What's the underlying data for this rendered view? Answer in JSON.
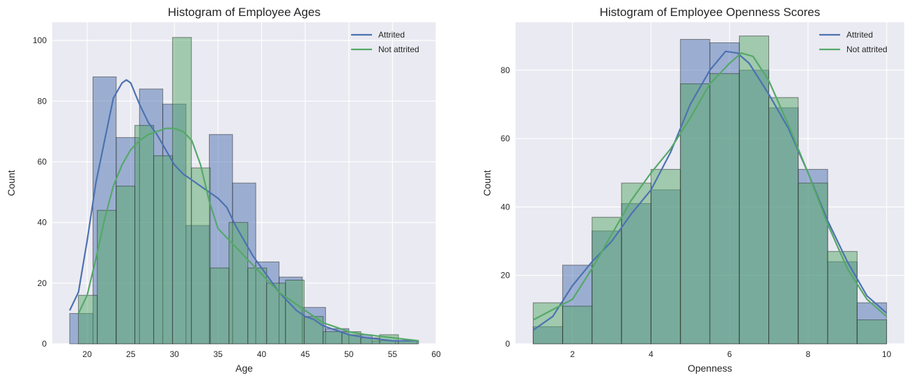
{
  "chart_data": [
    {
      "type": "histogram",
      "title": "Histogram of Employee Ages",
      "xlabel": "Age",
      "ylabel": "Count",
      "xlim": [
        16,
        60
      ],
      "ylim": [
        0,
        106
      ],
      "xticks": [
        20,
        25,
        30,
        35,
        40,
        45,
        50,
        55,
        60
      ],
      "yticks": [
        0,
        20,
        40,
        60,
        80,
        100
      ],
      "grid": true,
      "legend_position": "top-right",
      "legend": [
        "Attrited",
        "Not attrited"
      ],
      "series": [
        {
          "name": "Attrited",
          "color": "#4c72b0",
          "bin_edges": [
            18,
            20.67,
            23.33,
            26,
            28.67,
            31.33,
            34,
            36.67,
            39.33,
            42,
            44.67,
            47.33,
            50,
            52.67,
            55.33,
            58
          ],
          "counts": [
            10,
            88,
            68,
            84,
            79,
            39,
            69,
            53,
            27,
            22,
            12,
            5,
            3,
            1,
            1
          ],
          "kde": [
            [
              18,
              11
            ],
            [
              19,
              17
            ],
            [
              20,
              34
            ],
            [
              21,
              53
            ],
            [
              22,
              67
            ],
            [
              23,
              81
            ],
            [
              24,
              86
            ],
            [
              24.5,
              87
            ],
            [
              25,
              86
            ],
            [
              26,
              79
            ],
            [
              27,
              73
            ],
            [
              28,
              69
            ],
            [
              29,
              64
            ],
            [
              30,
              59
            ],
            [
              31,
              56
            ],
            [
              32,
              54
            ],
            [
              33,
              52
            ],
            [
              34,
              50
            ],
            [
              35,
              48
            ],
            [
              36,
              45
            ],
            [
              37,
              39
            ],
            [
              38,
              34
            ],
            [
              39,
              29
            ],
            [
              40,
              25
            ],
            [
              41,
              21
            ],
            [
              42,
              17
            ],
            [
              43,
              14
            ],
            [
              44,
              11
            ],
            [
              45,
              9
            ],
            [
              46,
              8
            ],
            [
              47,
              6
            ],
            [
              48,
              5
            ],
            [
              50,
              3
            ],
            [
              52,
              2
            ],
            [
              55,
              1
            ],
            [
              58,
              1
            ]
          ]
        },
        {
          "name": "Not attrited",
          "color": "#55a868",
          "bin_edges": [
            19,
            21.16,
            23.32,
            25.47,
            27.63,
            29.79,
            31.95,
            34.11,
            36.26,
            38.42,
            40.58,
            42.74,
            44.89,
            47.05,
            49.21,
            51.37,
            53.53,
            55.68,
            57.84
          ],
          "counts": [
            16,
            44,
            52,
            72,
            62,
            101,
            58,
            25,
            40,
            25,
            20,
            21,
            9,
            4,
            4,
            2,
            3,
            1
          ],
          "kde": [
            [
              19,
              10
            ],
            [
              20,
              16
            ],
            [
              21,
              28
            ],
            [
              22,
              41
            ],
            [
              23,
              52
            ],
            [
              24,
              59
            ],
            [
              25,
              64
            ],
            [
              26,
              67
            ],
            [
              27,
              69
            ],
            [
              28,
              70
            ],
            [
              29,
              71
            ],
            [
              30,
              71
            ],
            [
              31,
              70
            ],
            [
              32,
              67
            ],
            [
              33,
              59
            ],
            [
              34,
              47
            ],
            [
              35,
              38
            ],
            [
              36,
              35
            ],
            [
              37,
              32
            ],
            [
              38,
              29
            ],
            [
              39,
              26
            ],
            [
              40,
              23
            ],
            [
              41,
              20
            ],
            [
              42,
              17
            ],
            [
              43,
              15
            ],
            [
              44,
              13
            ],
            [
              45,
              11
            ],
            [
              46,
              9
            ],
            [
              47,
              7
            ],
            [
              48,
              6
            ],
            [
              50,
              4
            ],
            [
              52,
              3
            ],
            [
              55,
              2
            ],
            [
              58,
              1
            ]
          ]
        }
      ]
    },
    {
      "type": "histogram",
      "title": "Histogram of Employee Openness Scores",
      "xlabel": "Openness",
      "ylabel": "Count",
      "xlim": [
        0.55,
        10.45
      ],
      "ylim": [
        0,
        94
      ],
      "xticks": [
        2,
        4,
        6,
        8,
        10
      ],
      "yticks": [
        0,
        20,
        40,
        60,
        80
      ],
      "grid": true,
      "legend_position": "top-right",
      "legend": [
        "Attrited",
        "Not attrited"
      ],
      "series": [
        {
          "name": "Attrited",
          "color": "#4c72b0",
          "bin_edges": [
            1,
            1.75,
            2.5,
            3.25,
            4,
            4.75,
            5.5,
            6.25,
            7,
            7.75,
            8.5,
            9.25,
            10
          ],
          "counts": [
            5,
            23,
            33,
            41,
            45,
            89,
            88,
            80,
            69,
            51,
            24,
            12
          ],
          "kde": [
            [
              1,
              4
            ],
            [
              1.5,
              8
            ],
            [
              2,
              17
            ],
            [
              2.5,
              24
            ],
            [
              3,
              30
            ],
            [
              3.5,
              38
            ],
            [
              4,
              45
            ],
            [
              4.5,
              56
            ],
            [
              5,
              70
            ],
            [
              5.5,
              80
            ],
            [
              5.9,
              85.5
            ],
            [
              6.2,
              85
            ],
            [
              6.5,
              82
            ],
            [
              7,
              73
            ],
            [
              7.5,
              63
            ],
            [
              8,
              50
            ],
            [
              8.5,
              36
            ],
            [
              9,
              24
            ],
            [
              9.5,
              14
            ],
            [
              10,
              9
            ]
          ]
        },
        {
          "name": "Not attrited",
          "color": "#55a868",
          "bin_edges": [
            1,
            1.75,
            2.5,
            3.25,
            4,
            4.75,
            5.5,
            6.25,
            7,
            7.75,
            8.5,
            9.25,
            10
          ],
          "counts": [
            12,
            11,
            37,
            47,
            51,
            76,
            79,
            90,
            72,
            47,
            27,
            7
          ],
          "kde": [
            [
              1,
              7
            ],
            [
              1.5,
              10
            ],
            [
              2,
              13
            ],
            [
              2.5,
              22
            ],
            [
              3,
              32
            ],
            [
              3.5,
              42
            ],
            [
              4,
              50
            ],
            [
              4.5,
              57
            ],
            [
              5,
              66
            ],
            [
              5.5,
              76
            ],
            [
              6,
              82
            ],
            [
              6.3,
              85
            ],
            [
              6.6,
              84
            ],
            [
              7,
              77
            ],
            [
              7.5,
              64
            ],
            [
              8,
              50
            ],
            [
              8.5,
              35
            ],
            [
              9,
              22
            ],
            [
              9.5,
              13
            ],
            [
              10,
              8
            ]
          ]
        }
      ]
    }
  ]
}
